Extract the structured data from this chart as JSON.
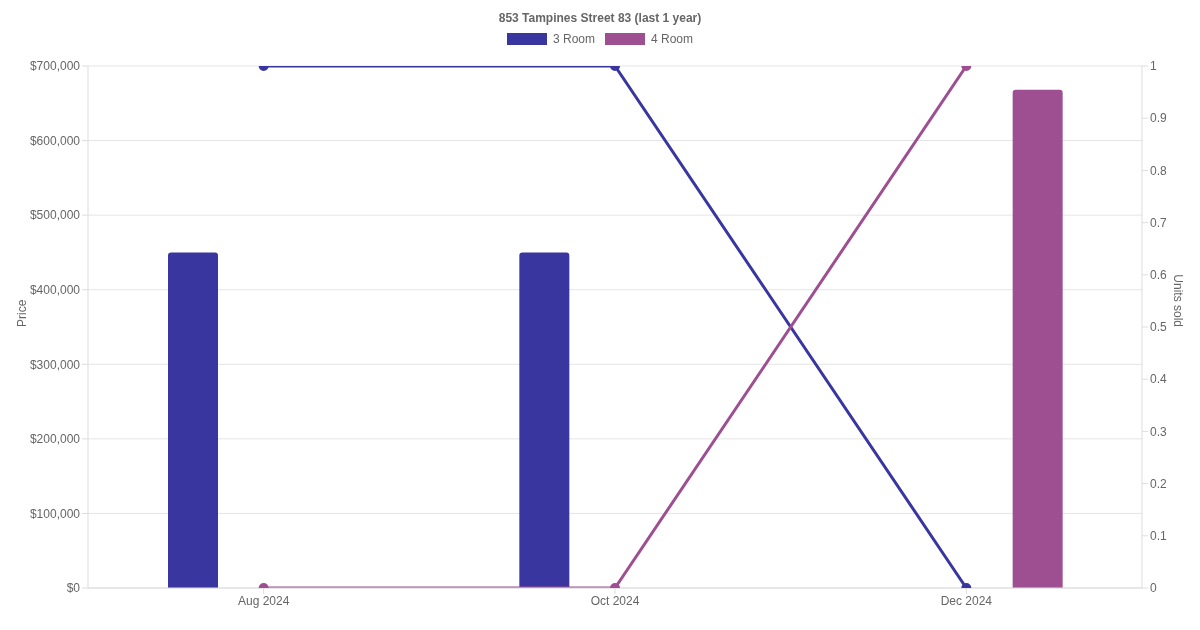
{
  "chart_data": {
    "type": "bar",
    "title": "853 Tampines Street 83 (last 1 year)",
    "ylabel": "Price",
    "y2label": "Units sold",
    "categories": [
      "Aug 2024",
      "Oct 2024",
      "Dec 2024"
    ],
    "series": [
      {
        "name": "3 Room",
        "color": "#3a36a0",
        "values": [
          450000,
          450000,
          null
        ]
      },
      {
        "name": "4 Room",
        "color": "#9e4f92",
        "values": [
          null,
          null,
          668000
        ]
      },
      {
        "type": "line",
        "axis": "y2",
        "color": "#3a36a0",
        "values": [
          1,
          1,
          0
        ]
      },
      {
        "type": "line",
        "axis": "y2",
        "color": "#9e4f92",
        "values": [
          0,
          0,
          1
        ]
      }
    ],
    "ylim": [
      0,
      700000
    ],
    "yticks": [
      {
        "value": 0,
        "label": "$0"
      },
      {
        "value": 100000,
        "label": "$100,000"
      },
      {
        "value": 200000,
        "label": "$200,000"
      },
      {
        "value": 300000,
        "label": "$300,000"
      },
      {
        "value": 400000,
        "label": "$400,000"
      },
      {
        "value": 500000,
        "label": "$500,000"
      },
      {
        "value": 600000,
        "label": "$600,000"
      },
      {
        "value": 700000,
        "label": "$700,000"
      }
    ],
    "y2lim": [
      0,
      1
    ],
    "y2ticks": [
      0,
      0.1,
      0.2,
      0.3,
      0.4,
      0.5,
      0.6,
      0.7,
      0.8,
      0.9,
      1
    ],
    "grid": "y",
    "legend": "top",
    "marker": "circle"
  }
}
